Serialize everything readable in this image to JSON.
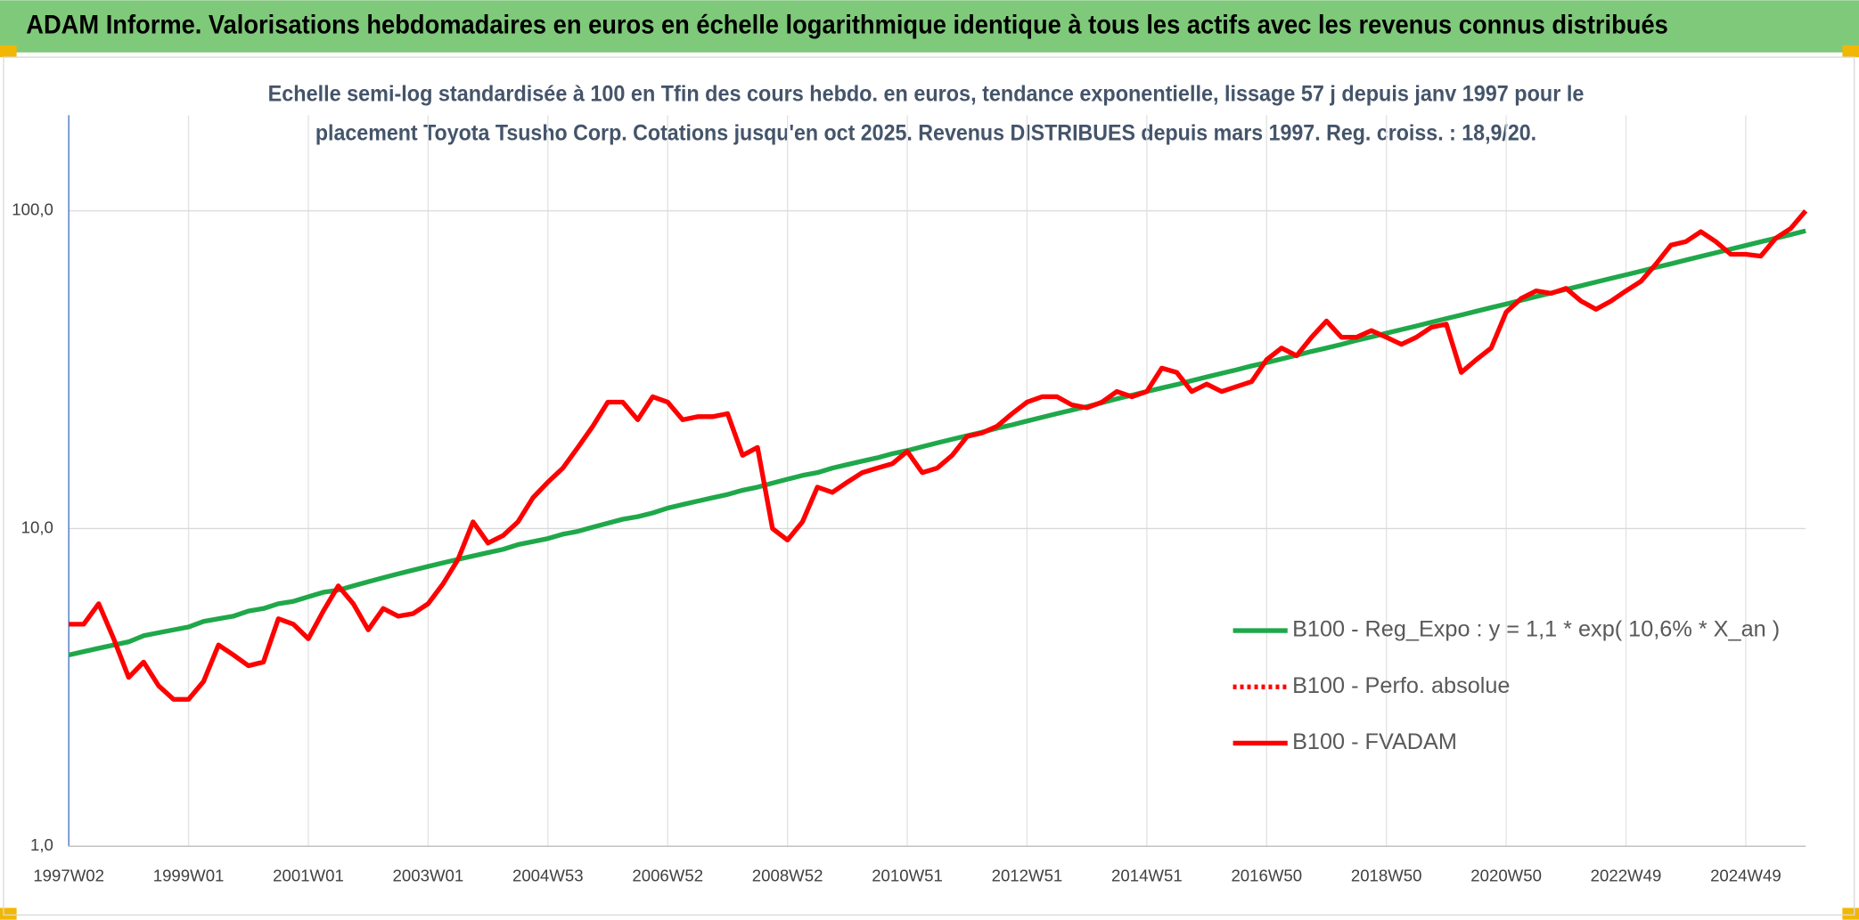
{
  "title": "ADAM Informe. Valorisations hebdomadaires en euros en échelle logarithmique identique à tous les actifs avec les revenus connus distribués",
  "chart_data": {
    "type": "line",
    "subtitle": [
      "Echelle semi-log standardisée à 100 en Tfin des cours hebdo. en euros, tendance exponentielle, lissage 57 j depuis janv 1997 pour le",
      "placement Toyota Tsusho Corp. Cotations jusqu'en oct 2025. Revenus DISTRIBUES depuis mars 1997. Reg. croiss. : 18,9/20."
    ],
    "categories": [
      "1997W02",
      null,
      null,
      null,
      null,
      null,
      null,
      null,
      "1999W01",
      null,
      null,
      null,
      null,
      null,
      null,
      null,
      "2001W01",
      null,
      null,
      null,
      null,
      null,
      null,
      null,
      "2003W01",
      null,
      null,
      null,
      null,
      null,
      null,
      null,
      "2004W53",
      null,
      null,
      null,
      null,
      null,
      null,
      null,
      "2006W52",
      null,
      null,
      null,
      null,
      null,
      null,
      null,
      "2008W52",
      null,
      null,
      null,
      null,
      null,
      null,
      null,
      "2010W51",
      null,
      null,
      null,
      null,
      null,
      null,
      null,
      "2012W51",
      null,
      null,
      null,
      null,
      null,
      null,
      null,
      "2014W51",
      null,
      null,
      null,
      null,
      null,
      null,
      null,
      "2016W50",
      null,
      null,
      null,
      null,
      null,
      null,
      null,
      "2018W50",
      null,
      null,
      null,
      null,
      null,
      null,
      null,
      "2020W50",
      null,
      null,
      null,
      null,
      null,
      null,
      null,
      "2022W49",
      null,
      null,
      null,
      null,
      null,
      null,
      null,
      "2024W49",
      null,
      null,
      null,
      null
    ],
    "series": [
      {
        "name": "B100 - Reg_Expo : y = 1,1 * exp( 10,6% *  X_an )",
        "color": "#1fa84a",
        "values": [
          4.0,
          4.1,
          4.2,
          4.3,
          4.4,
          4.6,
          4.7,
          4.8,
          4.9,
          5.1,
          5.2,
          5.3,
          5.5,
          5.6,
          5.8,
          5.9,
          6.1,
          6.3,
          6.4,
          6.6,
          6.8,
          7.0,
          7.2,
          7.4,
          7.6,
          7.8,
          8.0,
          8.2,
          8.4,
          8.6,
          8.9,
          9.1,
          9.3,
          9.6,
          9.8,
          10.1,
          10.4,
          10.7,
          10.9,
          11.2,
          11.6,
          11.9,
          12.2,
          12.5,
          12.8,
          13.2,
          13.5,
          13.9,
          14.3,
          14.7,
          15.0,
          15.5,
          15.9,
          16.3,
          16.7,
          17.2,
          17.6,
          18.1,
          18.6,
          19.1,
          19.6,
          20.1,
          20.7,
          21.2,
          21.8,
          22.4,
          23.0,
          23.6,
          24.2,
          24.9,
          25.6,
          26.3,
          27.0,
          27.7,
          28.4,
          29.2,
          30.0,
          30.8,
          31.6,
          32.5,
          33.3,
          34.2,
          35.1,
          36.1,
          37.0,
          38.0,
          39.1,
          40.1,
          41.2,
          42.3,
          43.4,
          44.6,
          45.8,
          47.0,
          48.3,
          49.6,
          50.9,
          52.3,
          53.7,
          55.1,
          56.6,
          58.1,
          59.7,
          61.3,
          62.9,
          64.6,
          66.4,
          68.1,
          70.0,
          71.9,
          73.8,
          75.8,
          77.8,
          79.9,
          82.0,
          84.2,
          86.5
        ]
      },
      {
        "name": "B100 - Perfo. absolue",
        "color": "#ff0000",
        "dash": "dotted"
      },
      {
        "name": "B100 - FVADAM",
        "color": "#ff0000",
        "values": [
          5.0,
          5.0,
          5.8,
          4.5,
          3.4,
          3.8,
          3.2,
          2.9,
          2.9,
          3.3,
          4.3,
          4.0,
          3.7,
          3.8,
          5.2,
          5.0,
          4.5,
          5.5,
          6.6,
          5.8,
          4.8,
          5.6,
          5.3,
          5.4,
          5.8,
          6.7,
          8.0,
          10.5,
          9.0,
          9.5,
          10.5,
          12.5,
          14.0,
          15.5,
          18.0,
          21.0,
          25.0,
          25.0,
          22.0,
          26.0,
          25.0,
          22.0,
          22.5,
          22.5,
          23.0,
          17.0,
          18.0,
          10.0,
          9.2,
          10.5,
          13.5,
          13.0,
          14.0,
          15.0,
          15.5,
          16.0,
          17.5,
          15.0,
          15.5,
          17.0,
          19.5,
          20.0,
          21.0,
          23.0,
          25.0,
          26.0,
          26.0,
          24.5,
          24.0,
          25.0,
          27.0,
          26.0,
          27.0,
          32.0,
          31.0,
          27.0,
          28.5,
          27.0,
          28.0,
          29.0,
          34.0,
          37.0,
          35.0,
          40.0,
          45.0,
          40.0,
          40.0,
          42.0,
          40.0,
          38.0,
          40.0,
          43.0,
          44.0,
          31.0,
          34.0,
          37.0,
          48.0,
          53.0,
          56.0,
          55.0,
          57.0,
          52.0,
          49.0,
          52.0,
          56.0,
          60.0,
          68.0,
          78.0,
          80.0,
          86.0,
          80.0,
          73.0,
          73.0,
          72.0,
          82.0,
          88.0,
          100.0
        ]
      }
    ],
    "log_scale": true,
    "ylim": [
      1,
      200
    ],
    "yticks": [
      {
        "value": 1,
        "label": "1,0"
      },
      {
        "value": 10,
        "label": "10,0"
      },
      {
        "value": 100,
        "label": "100,0"
      }
    ],
    "grid": true,
    "legend": "right"
  }
}
